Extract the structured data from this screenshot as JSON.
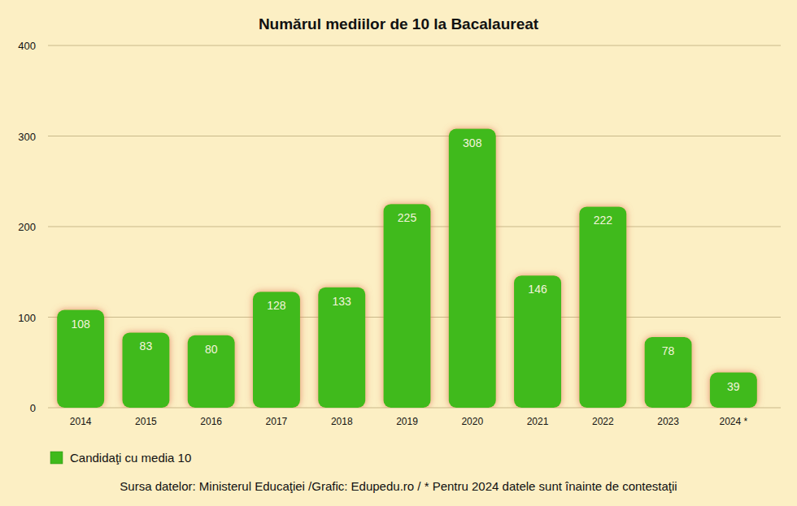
{
  "chart_data": {
    "type": "bar",
    "title": "Numărul mediilor de 10 la Bacalaureat",
    "categories": [
      "2014",
      "2015",
      "2016",
      "2017",
      "2018",
      "2019",
      "2020",
      "2021",
      "2022",
      "2023",
      "2024 *"
    ],
    "series": [
      {
        "name": "Candidaţi cu media 10",
        "color": "#3fba1c",
        "values": [
          108,
          83,
          80,
          128,
          133,
          225,
          308,
          146,
          222,
          78,
          39
        ]
      }
    ],
    "ylim": [
      0,
      400
    ],
    "yticks": [
      0,
      100,
      200,
      300,
      400
    ],
    "grid": true,
    "data_labels": true,
    "legend": "bottom-left",
    "annotations": [
      "Sursa datelor: Ministerul Educaţiei /Grafic: Edupedu.ro / * Pentru 2024 datele sunt înainte de contestaţii"
    ]
  }
}
